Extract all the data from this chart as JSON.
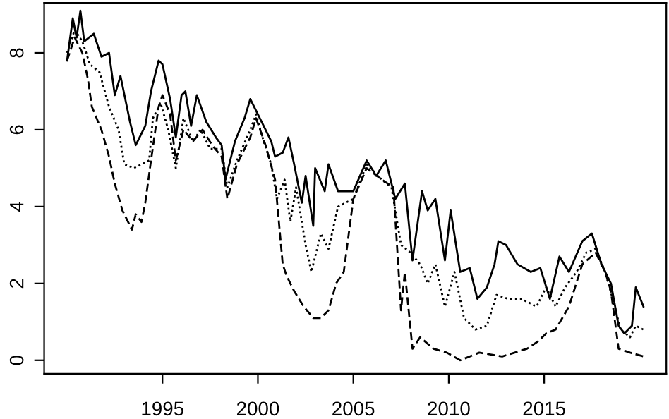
{
  "chart_data": {
    "type": "line",
    "xlim": [
      1988.8,
      2021.4
    ],
    "ylim": [
      -0.35,
      9.3
    ],
    "xticks": [
      1995,
      2000,
      2005,
      2010,
      2015
    ],
    "yticks": [
      0,
      2,
      4,
      6,
      8
    ],
    "grid": false,
    "legend": false,
    "marker": "none",
    "series": [
      {
        "color": "#000000",
        "line_style": "solid",
        "x": [
          1990.0,
          1990.3,
          1990.5,
          1990.7,
          1990.9,
          1991.4,
          1991.8,
          1992.2,
          1992.5,
          1992.8,
          1993.3,
          1993.6,
          1993.9,
          1994.1,
          1994.4,
          1994.8,
          1995.0,
          1995.4,
          1995.7,
          1996.0,
          1996.2,
          1996.5,
          1996.8,
          1997.3,
          1997.8,
          1998.1,
          1998.3,
          1998.8,
          1999.3,
          1999.6,
          1999.9,
          2000.3,
          2000.7,
          2000.9,
          2001.3,
          2001.6,
          2001.9,
          2002.3,
          2002.5,
          2002.9,
          2003.0,
          2003.5,
          2003.7,
          2004.2,
          2005.0,
          2005.7,
          2006.2,
          2006.7,
          2007.2,
          2007.7,
          2008.1,
          2008.6,
          2008.9,
          2009.3,
          2009.8,
          2010.1,
          2010.6,
          2011.1,
          2011.5,
          2012.0,
          2012.4,
          2012.6,
          2013.0,
          2013.6,
          2014.3,
          2014.8,
          2015.3,
          2015.8,
          2016.3,
          2017.0,
          2017.5,
          2018.0,
          2018.5,
          2018.9,
          2019.2,
          2019.6,
          2019.8,
          2020.2
        ],
        "values": [
          7.8,
          8.9,
          8.4,
          9.1,
          8.3,
          8.5,
          7.9,
          8.0,
          6.9,
          7.4,
          6.2,
          5.6,
          5.9,
          6.1,
          7.0,
          7.8,
          7.7,
          6.8,
          5.8,
          6.9,
          7.0,
          6.1,
          6.9,
          6.2,
          5.8,
          5.6,
          4.7,
          5.7,
          6.3,
          6.8,
          6.5,
          6.1,
          5.7,
          5.3,
          5.4,
          5.8,
          5.1,
          4.1,
          4.8,
          3.5,
          5.0,
          4.4,
          5.1,
          4.4,
          4.4,
          5.2,
          4.8,
          5.2,
          4.2,
          4.6,
          2.6,
          4.4,
          3.9,
          4.2,
          2.6,
          3.9,
          2.3,
          2.4,
          1.6,
          1.9,
          2.5,
          3.1,
          3.0,
          2.5,
          2.3,
          2.4,
          1.6,
          2.7,
          2.3,
          3.1,
          3.3,
          2.5,
          2.0,
          0.9,
          0.7,
          0.9,
          1.9,
          1.4
        ]
      },
      {
        "color": "#000000",
        "line_style": "dotted",
        "x": [
          1990.0,
          1990.4,
          1990.8,
          1991.2,
          1991.7,
          1992.2,
          1992.7,
          1993.0,
          1993.5,
          1993.9,
          1994.3,
          1994.5,
          1994.9,
          1995.3,
          1995.7,
          1996.1,
          1996.6,
          1997.0,
          1997.5,
          1998.1,
          1998.4,
          1998.9,
          1999.6,
          1999.9,
          2000.3,
          2000.7,
          2001.0,
          2001.4,
          2001.7,
          2002.0,
          2002.5,
          2002.8,
          2003.3,
          2003.7,
          2004.2,
          2005.0,
          2005.7,
          2006.5,
          2007.0,
          2007.5,
          2008.0,
          2008.5,
          2008.9,
          2009.3,
          2009.8,
          2010.3,
          2010.8,
          2011.4,
          2012.0,
          2012.5,
          2013.1,
          2013.8,
          2014.6,
          2015.1,
          2015.6,
          2016.1,
          2016.7,
          2017.2,
          2017.7,
          2018.2,
          2018.7,
          2019.0,
          2019.5,
          2019.8,
          2020.2
        ],
        "values": [
          8.0,
          8.6,
          8.3,
          7.7,
          7.5,
          6.6,
          6.0,
          5.1,
          5.0,
          5.1,
          5.2,
          6.3,
          6.7,
          6.0,
          5.0,
          6.3,
          5.7,
          6.0,
          5.5,
          5.5,
          4.5,
          5.2,
          6.0,
          6.4,
          5.7,
          5.1,
          4.2,
          4.7,
          3.6,
          4.5,
          3.0,
          2.3,
          3.3,
          2.9,
          4.0,
          4.2,
          5.1,
          4.7,
          4.5,
          3.0,
          2.8,
          2.5,
          2.0,
          2.5,
          1.4,
          2.3,
          1.1,
          0.8,
          0.9,
          1.7,
          1.6,
          1.6,
          1.4,
          1.9,
          1.4,
          1.9,
          2.3,
          2.8,
          2.9,
          2.3,
          1.4,
          0.8,
          0.6,
          0.9,
          0.8
        ]
      },
      {
        "color": "#000000",
        "line_style": "dashed",
        "x": [
          1990.0,
          1990.4,
          1990.8,
          1991.1,
          1991.3,
          1991.8,
          1992.2,
          1992.5,
          1992.9,
          1993.4,
          1993.6,
          1993.9,
          1994.1,
          1994.4,
          1994.8,
          1995.0,
          1995.4,
          1995.7,
          1996.1,
          1996.6,
          1997.1,
          1997.6,
          1998.1,
          1998.4,
          1998.9,
          1999.6,
          1999.9,
          2000.4,
          2000.9,
          2001.3,
          2001.5,
          2001.9,
          2002.4,
          2002.9,
          2003.3,
          2003.7,
          2004.1,
          2004.5,
          2005.0,
          2005.7,
          2006.5,
          2007.1,
          2007.5,
          2007.7,
          2008.1,
          2008.5,
          2009.2,
          2009.9,
          2010.6,
          2011.6,
          2012.8,
          2014.1,
          2014.7,
          2015.1,
          2015.6,
          2016.3,
          2017.0,
          2017.7,
          2018.2,
          2018.5,
          2018.9,
          2019.5,
          2020.2
        ],
        "values": [
          7.8,
          8.4,
          8.0,
          7.3,
          6.6,
          6.0,
          5.3,
          4.6,
          3.9,
          3.4,
          3.8,
          3.6,
          4.1,
          5.2,
          6.6,
          6.9,
          6.4,
          5.2,
          6.0,
          5.7,
          6.0,
          5.6,
          5.3,
          4.2,
          5.1,
          5.8,
          6.3,
          5.6,
          4.7,
          2.5,
          2.2,
          1.8,
          1.4,
          1.1,
          1.1,
          1.3,
          2.0,
          2.3,
          4.2,
          5.0,
          4.7,
          4.5,
          1.3,
          2.3,
          0.3,
          0.6,
          0.3,
          0.2,
          0.0,
          0.2,
          0.1,
          0.3,
          0.5,
          0.7,
          0.8,
          1.4,
          2.5,
          2.8,
          2.3,
          1.8,
          0.3,
          0.2,
          0.1
        ]
      }
    ]
  }
}
